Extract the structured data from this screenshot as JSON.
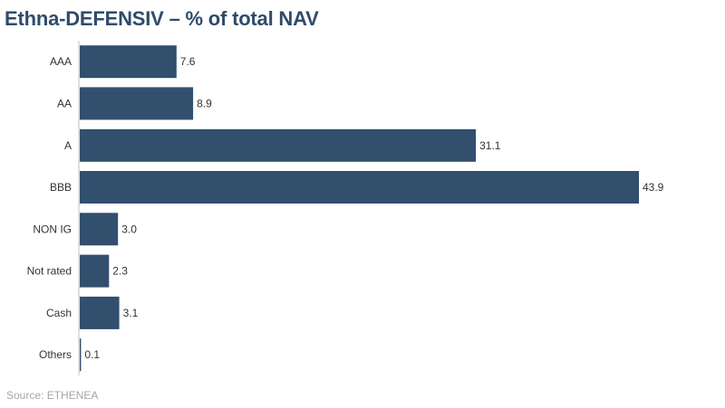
{
  "chart_data": {
    "type": "bar",
    "orientation": "horizontal",
    "title": "Ethna-DEFENSIV – % of total NAV",
    "categories": [
      "AAA",
      "AA",
      "A",
      "BBB",
      "NON IG",
      "Not rated",
      "Cash",
      "Others"
    ],
    "values": [
      7.6,
      8.9,
      31.1,
      43.9,
      3.0,
      2.3,
      3.1,
      0.1
    ],
    "value_labels": [
      "7.6",
      "8.9",
      "31.1",
      "43.9",
      "3.0",
      "2.3",
      "3.1",
      "0.1"
    ],
    "xlim": [
      0,
      43.9
    ],
    "grid": false,
    "bar_color": "#324f6d"
  },
  "source": "Source: ETHENEA"
}
